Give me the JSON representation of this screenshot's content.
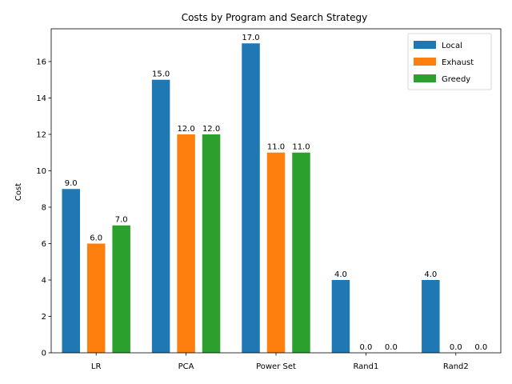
{
  "chart_data": {
    "type": "bar",
    "title": "Costs by Program and Search Strategy",
    "xlabel": "",
    "ylabel": "Cost",
    "ylim": [
      0,
      17.8
    ],
    "yticks": [
      0,
      2,
      4,
      6,
      8,
      10,
      12,
      14,
      16
    ],
    "categories": [
      "LR",
      "PCA",
      "Power Set",
      "Rand1",
      "Rand2"
    ],
    "series": [
      {
        "name": "Local",
        "color": "#1f77b4",
        "values": [
          9.0,
          15.0,
          17.0,
          4.0,
          4.0
        ]
      },
      {
        "name": "Exhaust",
        "color": "#ff7f0e",
        "values": [
          6.0,
          12.0,
          11.0,
          0.0,
          0.0
        ]
      },
      {
        "name": "Greedy",
        "color": "#2ca02c",
        "values": [
          7.0,
          12.0,
          11.0,
          0.0,
          0.0
        ]
      }
    ],
    "legend_position": "top-right",
    "grid": false
  }
}
